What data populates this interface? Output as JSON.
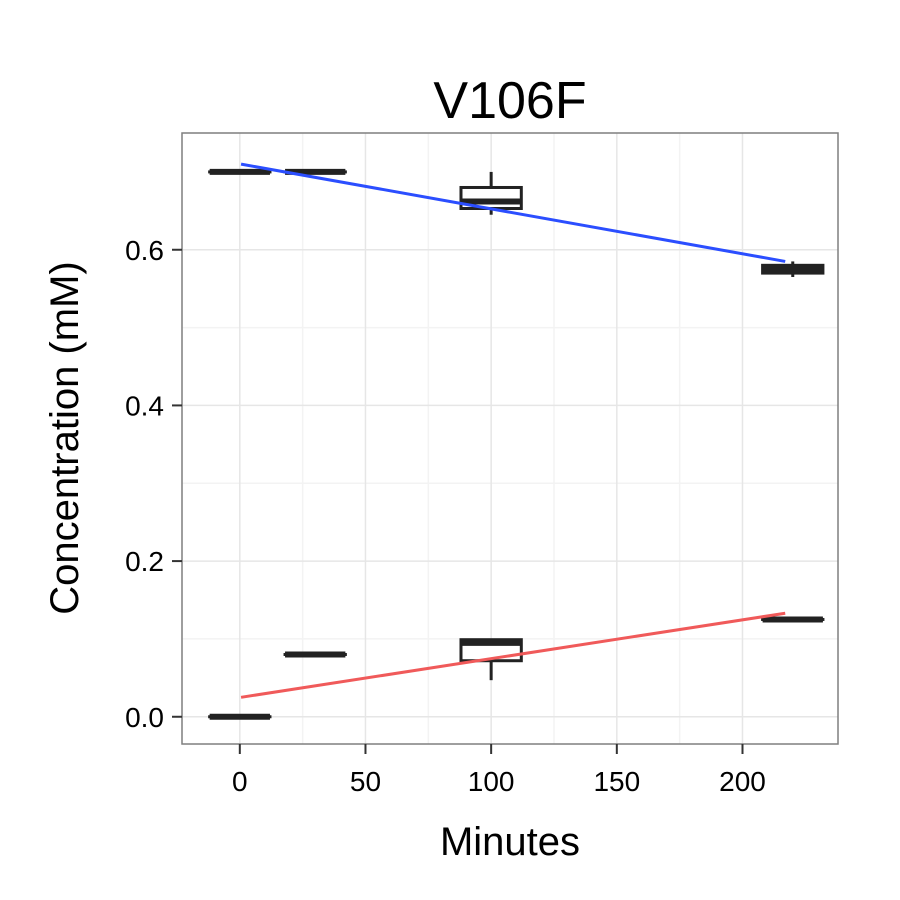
{
  "chart_data": {
    "type": "box",
    "title": "V106F",
    "xlabel": "Minutes",
    "ylabel": "Concentration (mM)",
    "xlim": [
      -23,
      238
    ],
    "ylim": [
      -0.035,
      0.75
    ],
    "x_ticks": [
      0,
      50,
      100,
      150,
      200
    ],
    "x_tick_labels": [
      "0",
      "50",
      "100",
      "150",
      "200"
    ],
    "y_ticks": [
      0.0,
      0.2,
      0.4,
      0.6
    ],
    "y_tick_labels": [
      "0.0",
      "0.2",
      "0.4",
      "0.6"
    ],
    "grid": true,
    "series": [
      {
        "boxes": [
          {
            "x": 0,
            "min": 0.7,
            "q1": 0.7,
            "median": 0.7,
            "q3": 0.7,
            "max": 0.7
          },
          {
            "x": 30,
            "min": 0.7,
            "q1": 0.7,
            "median": 0.7,
            "q3": 0.7,
            "max": 0.7
          },
          {
            "x": 100,
            "min": 0.645,
            "q1": 0.653,
            "median": 0.662,
            "q3": 0.68,
            "max": 0.7
          },
          {
            "x": 220,
            "min": 0.565,
            "q1": 0.57,
            "median": 0.575,
            "q3": 0.58,
            "max": 0.585
          }
        ],
        "fit_line": {
          "x": [
            0.5,
            217
          ],
          "y": [
            0.71,
            0.585
          ],
          "color": "#2b4eff"
        }
      },
      {
        "boxes": [
          {
            "x": 0,
            "min": 0.0,
            "q1": 0.0,
            "median": 0.0,
            "q3": 0.0,
            "max": 0.0
          },
          {
            "x": 30,
            "min": 0.08,
            "q1": 0.08,
            "median": 0.08,
            "q3": 0.08,
            "max": 0.08
          },
          {
            "x": 100,
            "min": 0.047,
            "q1": 0.072,
            "median": 0.095,
            "q3": 0.099,
            "max": 0.1
          },
          {
            "x": 220,
            "min": 0.125,
            "q1": 0.125,
            "median": 0.125,
            "q3": 0.125,
            "max": 0.125
          }
        ],
        "fit_line": {
          "x": [
            0.5,
            217
          ],
          "y": [
            0.025,
            0.133
          ],
          "color": "#f05a5a"
        }
      }
    ],
    "box_width": 24
  },
  "colors": {
    "panel_border": "#7f7f7f",
    "grid_major": "#e6e6e6",
    "grid_minor": "#f3f3f3",
    "box_stroke": "#222222",
    "box_fill": "#ffffff",
    "tick": "#333333"
  }
}
